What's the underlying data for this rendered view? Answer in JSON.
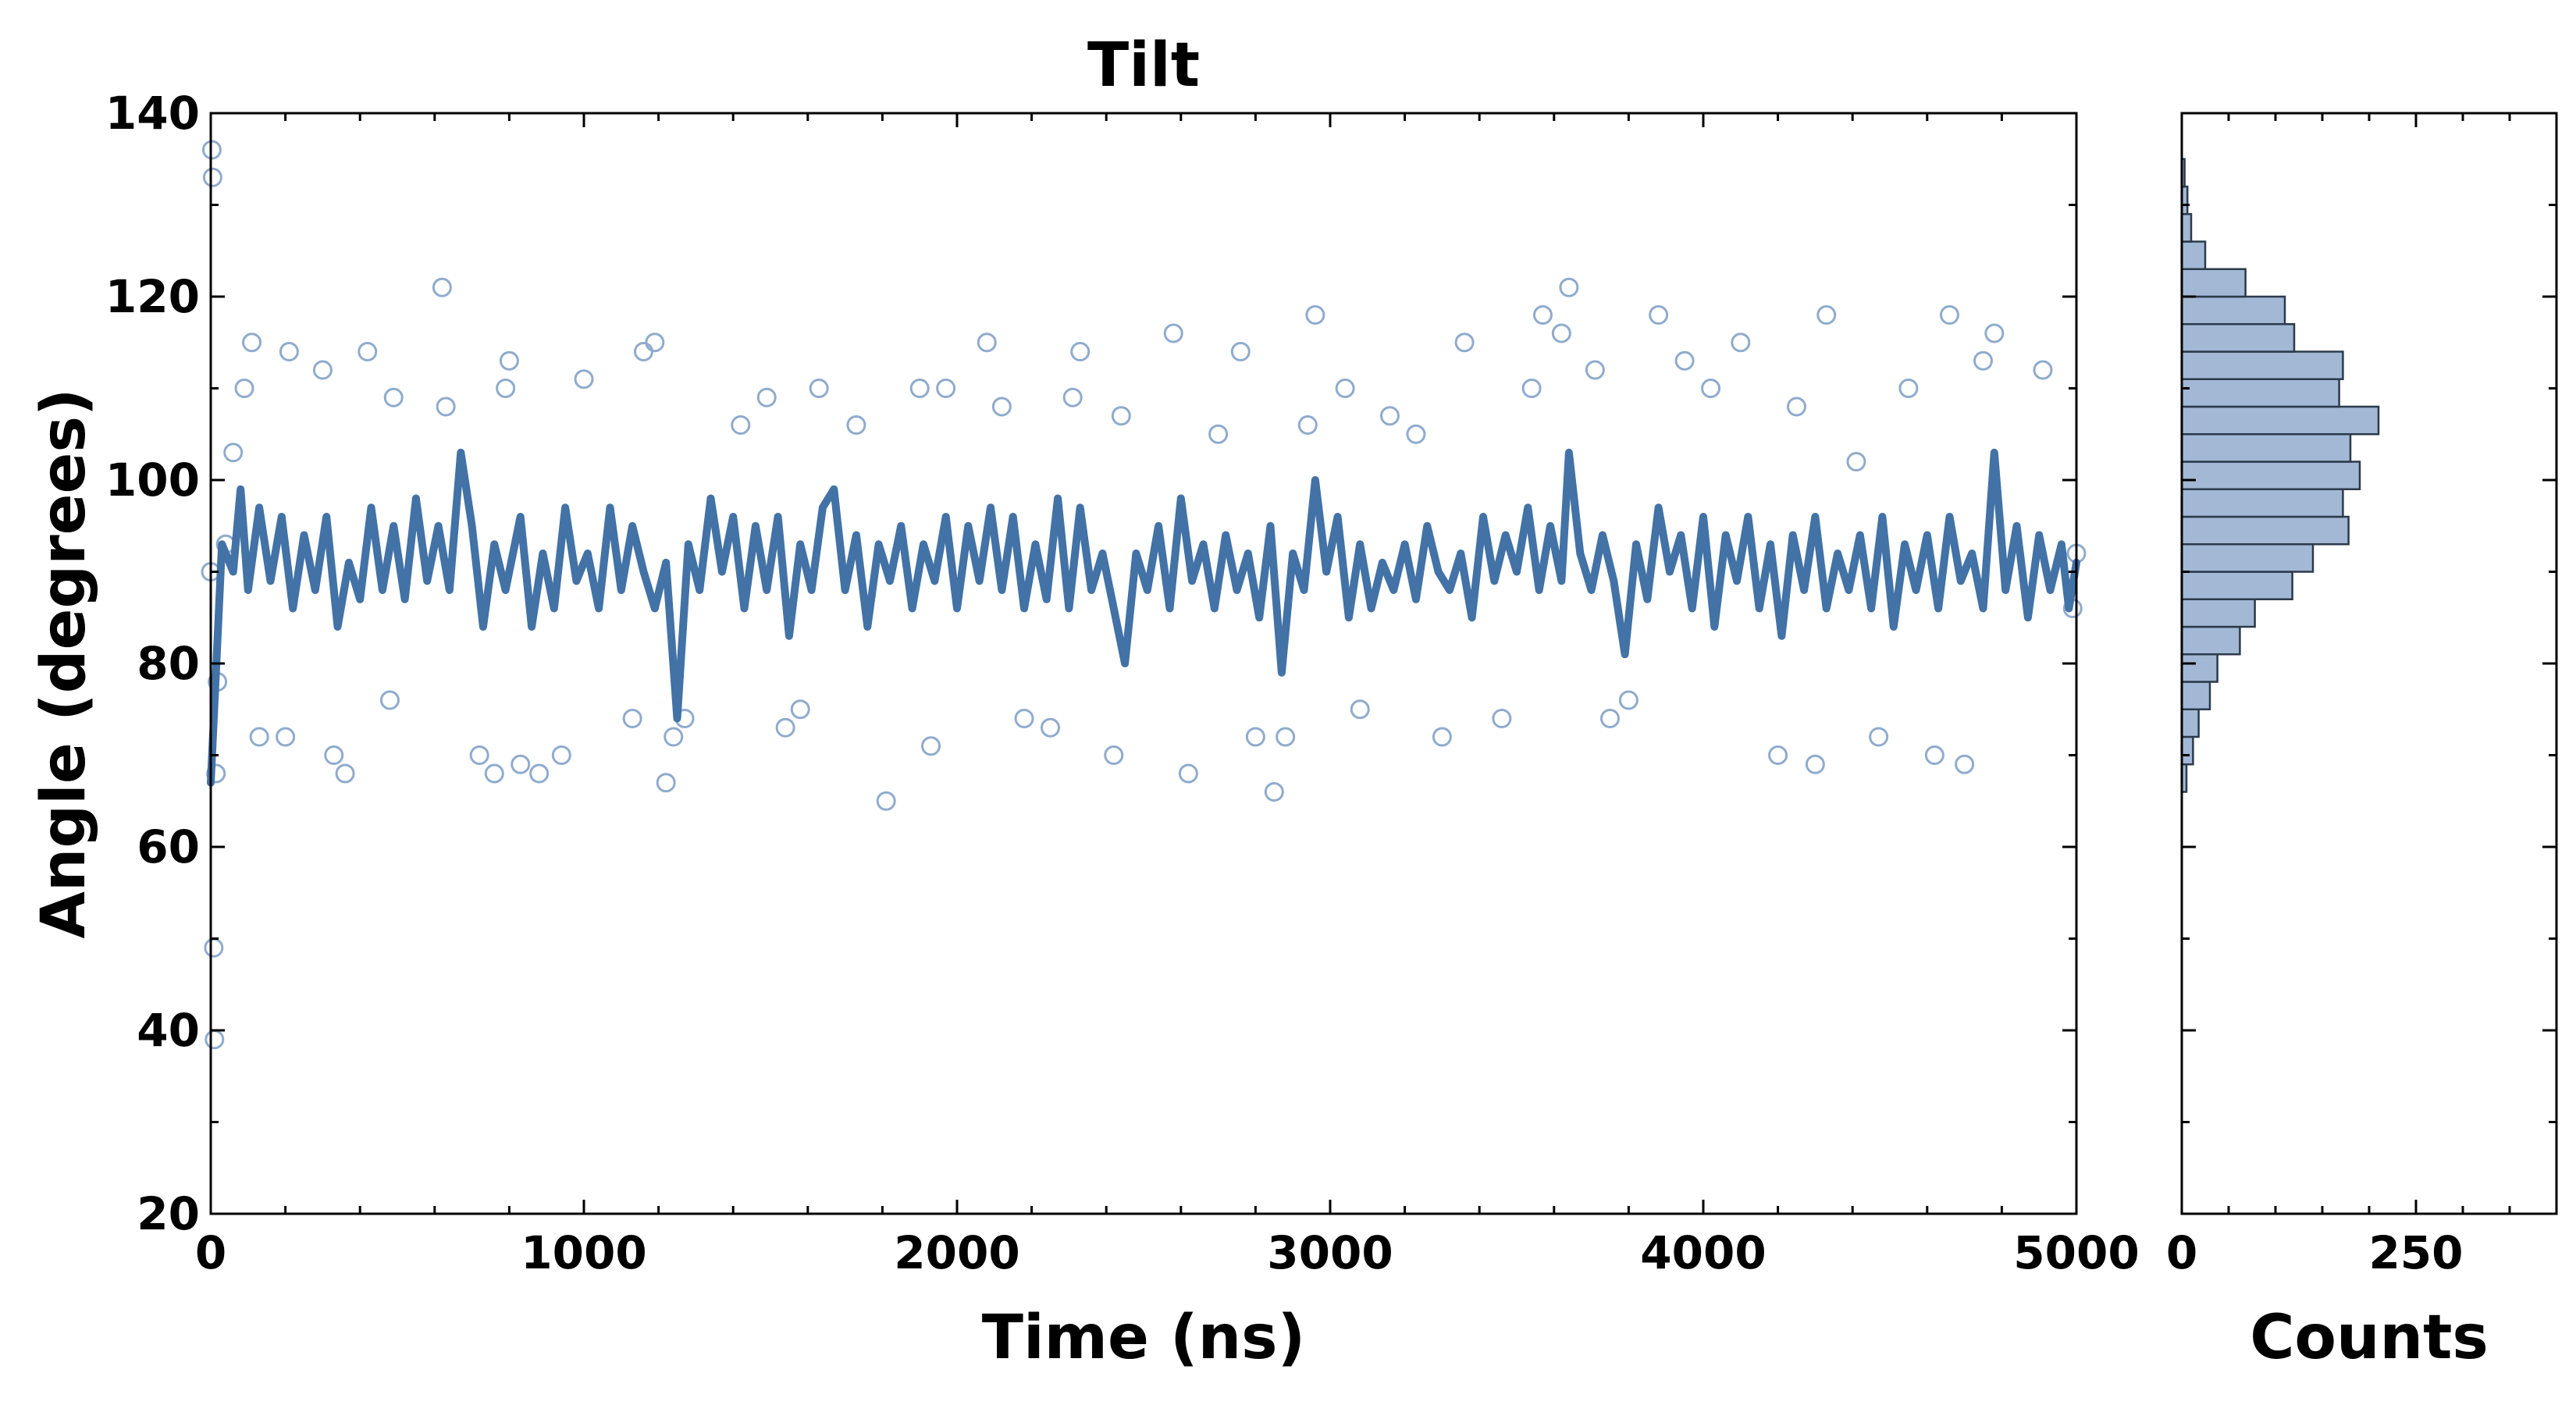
{
  "chart_data": [
    {
      "type": "scatter",
      "title": "Tilt",
      "xlabel": "Time (ns)",
      "ylabel": "Angle (degrees)",
      "xlim": [
        0,
        5000
      ],
      "ylim": [
        20,
        140
      ],
      "xticks": [
        "0",
        "1000",
        "2000",
        "3000",
        "4000",
        "5000"
      ],
      "yticks": [
        "20",
        "40",
        "60",
        "80",
        "100",
        "120",
        "140"
      ],
      "grid": false,
      "series": [
        {
          "kind": "scatter",
          "marker": "open-circle",
          "color": "#8fabcd",
          "points": [
            [
              0,
              90
            ],
            [
              3,
              136
            ],
            [
              5,
              133
            ],
            [
              8,
              49
            ],
            [
              10,
              39
            ],
            [
              14,
              68
            ],
            [
              18,
              78
            ],
            [
              40,
              93
            ],
            [
              60,
              103
            ],
            [
              90,
              110
            ],
            [
              110,
              115
            ],
            [
              130,
              72
            ],
            [
              200,
              72
            ],
            [
              210,
              114
            ],
            [
              300,
              112
            ],
            [
              330,
              70
            ],
            [
              360,
              68
            ],
            [
              420,
              114
            ],
            [
              480,
              76
            ],
            [
              490,
              109
            ],
            [
              620,
              121
            ],
            [
              630,
              108
            ],
            [
              720,
              70
            ],
            [
              760,
              68
            ],
            [
              790,
              110
            ],
            [
              800,
              113
            ],
            [
              830,
              69
            ],
            [
              880,
              68
            ],
            [
              940,
              70
            ],
            [
              1000,
              111
            ],
            [
              1130,
              74
            ],
            [
              1160,
              114
            ],
            [
              1190,
              115
            ],
            [
              1220,
              67
            ],
            [
              1240,
              72
            ],
            [
              1270,
              74
            ],
            [
              1420,
              106
            ],
            [
              1490,
              109
            ],
            [
              1540,
              73
            ],
            [
              1580,
              75
            ],
            [
              1630,
              110
            ],
            [
              1730,
              106
            ],
            [
              1810,
              65
            ],
            [
              1900,
              110
            ],
            [
              1930,
              71
            ],
            [
              1970,
              110
            ],
            [
              2080,
              115
            ],
            [
              2120,
              108
            ],
            [
              2180,
              74
            ],
            [
              2250,
              73
            ],
            [
              2310,
              109
            ],
            [
              2330,
              114
            ],
            [
              2420,
              70
            ],
            [
              2440,
              107
            ],
            [
              2580,
              116
            ],
            [
              2620,
              68
            ],
            [
              2700,
              105
            ],
            [
              2760,
              114
            ],
            [
              2800,
              72
            ],
            [
              2850,
              66
            ],
            [
              2880,
              72
            ],
            [
              2940,
              106
            ],
            [
              2960,
              118
            ],
            [
              3040,
              110
            ],
            [
              3080,
              75
            ],
            [
              3160,
              107
            ],
            [
              3230,
              105
            ],
            [
              3300,
              72
            ],
            [
              3360,
              115
            ],
            [
              3460,
              74
            ],
            [
              3540,
              110
            ],
            [
              3570,
              118
            ],
            [
              3620,
              116
            ],
            [
              3640,
              121
            ],
            [
              3710,
              112
            ],
            [
              3750,
              74
            ],
            [
              3800,
              76
            ],
            [
              3880,
              118
            ],
            [
              3950,
              113
            ],
            [
              4020,
              110
            ],
            [
              4100,
              115
            ],
            [
              4200,
              70
            ],
            [
              4250,
              108
            ],
            [
              4300,
              69
            ],
            [
              4330,
              118
            ],
            [
              4410,
              102
            ],
            [
              4470,
              72
            ],
            [
              4550,
              110
            ],
            [
              4620,
              70
            ],
            [
              4660,
              118
            ],
            [
              4700,
              69
            ],
            [
              4750,
              113
            ],
            [
              4780,
              116
            ],
            [
              4910,
              112
            ],
            [
              4990,
              86
            ],
            [
              5000,
              92
            ]
          ]
        },
        {
          "kind": "line",
          "color": "#4272a6",
          "points": [
            [
              0,
              67
            ],
            [
              15,
              80
            ],
            [
              30,
              93
            ],
            [
              60,
              90
            ],
            [
              80,
              99
            ],
            [
              100,
              88
            ],
            [
              130,
              97
            ],
            [
              160,
              89
            ],
            [
              190,
              96
            ],
            [
              220,
              86
            ],
            [
              250,
              94
            ],
            [
              280,
              88
            ],
            [
              310,
              96
            ],
            [
              340,
              84
            ],
            [
              370,
              91
            ],
            [
              400,
              87
            ],
            [
              430,
              97
            ],
            [
              460,
              88
            ],
            [
              490,
              95
            ],
            [
              520,
              87
            ],
            [
              550,
              98
            ],
            [
              580,
              89
            ],
            [
              610,
              95
            ],
            [
              640,
              88
            ],
            [
              670,
              103
            ],
            [
              700,
              95
            ],
            [
              730,
              84
            ],
            [
              760,
              93
            ],
            [
              790,
              88
            ],
            [
              830,
              96
            ],
            [
              860,
              84
            ],
            [
              890,
              92
            ],
            [
              920,
              86
            ],
            [
              950,
              97
            ],
            [
              980,
              89
            ],
            [
              1010,
              92
            ],
            [
              1040,
              86
            ],
            [
              1070,
              97
            ],
            [
              1100,
              88
            ],
            [
              1130,
              95
            ],
            [
              1160,
              90
            ],
            [
              1190,
              86
            ],
            [
              1220,
              91
            ],
            [
              1250,
              74
            ],
            [
              1280,
              93
            ],
            [
              1310,
              88
            ],
            [
              1340,
              98
            ],
            [
              1370,
              90
            ],
            [
              1400,
              96
            ],
            [
              1430,
              86
            ],
            [
              1460,
              95
            ],
            [
              1490,
              88
            ],
            [
              1520,
              96
            ],
            [
              1550,
              83
            ],
            [
              1580,
              93
            ],
            [
              1610,
              88
            ],
            [
              1640,
              97
            ],
            [
              1670,
              99
            ],
            [
              1700,
              88
            ],
            [
              1730,
              94
            ],
            [
              1760,
              84
            ],
            [
              1790,
              93
            ],
            [
              1820,
              89
            ],
            [
              1850,
              95
            ],
            [
              1880,
              86
            ],
            [
              1910,
              93
            ],
            [
              1940,
              89
            ],
            [
              1970,
              96
            ],
            [
              2000,
              86
            ],
            [
              2030,
              95
            ],
            [
              2060,
              89
            ],
            [
              2090,
              97
            ],
            [
              2120,
              88
            ],
            [
              2150,
              96
            ],
            [
              2180,
              86
            ],
            [
              2210,
              93
            ],
            [
              2240,
              87
            ],
            [
              2270,
              98
            ],
            [
              2300,
              86
            ],
            [
              2330,
              97
            ],
            [
              2360,
              88
            ],
            [
              2390,
              92
            ],
            [
              2420,
              86
            ],
            [
              2450,
              80
            ],
            [
              2480,
              92
            ],
            [
              2510,
              88
            ],
            [
              2540,
              95
            ],
            [
              2570,
              86
            ],
            [
              2600,
              98
            ],
            [
              2630,
              89
            ],
            [
              2660,
              93
            ],
            [
              2690,
              86
            ],
            [
              2720,
              94
            ],
            [
              2750,
              88
            ],
            [
              2780,
              92
            ],
            [
              2810,
              85
            ],
            [
              2840,
              95
            ],
            [
              2870,
              79
            ],
            [
              2900,
              92
            ],
            [
              2930,
              88
            ],
            [
              2960,
              100
            ],
            [
              2990,
              90
            ],
            [
              3020,
              96
            ],
            [
              3050,
              85
            ],
            [
              3080,
              93
            ],
            [
              3110,
              86
            ],
            [
              3140,
              91
            ],
            [
              3170,
              88
            ],
            [
              3200,
              93
            ],
            [
              3230,
              87
            ],
            [
              3260,
              95
            ],
            [
              3290,
              90
            ],
            [
              3320,
              88
            ],
            [
              3350,
              92
            ],
            [
              3380,
              85
            ],
            [
              3410,
              96
            ],
            [
              3440,
              89
            ],
            [
              3470,
              94
            ],
            [
              3500,
              90
            ],
            [
              3530,
              97
            ],
            [
              3560,
              88
            ],
            [
              3590,
              95
            ],
            [
              3620,
              89
            ],
            [
              3640,
              103
            ],
            [
              3670,
              92
            ],
            [
              3700,
              88
            ],
            [
              3730,
              94
            ],
            [
              3760,
              89
            ],
            [
              3790,
              81
            ],
            [
              3820,
              93
            ],
            [
              3850,
              87
            ],
            [
              3880,
              97
            ],
            [
              3910,
              90
            ],
            [
              3940,
              94
            ],
            [
              3970,
              86
            ],
            [
              4000,
              96
            ],
            [
              4030,
              84
            ],
            [
              4060,
              94
            ],
            [
              4090,
              89
            ],
            [
              4120,
              96
            ],
            [
              4150,
              86
            ],
            [
              4180,
              93
            ],
            [
              4210,
              83
            ],
            [
              4240,
              94
            ],
            [
              4270,
              88
            ],
            [
              4300,
              96
            ],
            [
              4330,
              86
            ],
            [
              4360,
              92
            ],
            [
              4390,
              88
            ],
            [
              4420,
              94
            ],
            [
              4450,
              86
            ],
            [
              4480,
              96
            ],
            [
              4510,
              84
            ],
            [
              4540,
              93
            ],
            [
              4570,
              88
            ],
            [
              4600,
              94
            ],
            [
              4630,
              86
            ],
            [
              4660,
              96
            ],
            [
              4690,
              89
            ],
            [
              4720,
              92
            ],
            [
              4750,
              86
            ],
            [
              4780,
              103
            ],
            [
              4810,
              88
            ],
            [
              4840,
              95
            ],
            [
              4870,
              85
            ],
            [
              4900,
              94
            ],
            [
              4930,
              88
            ],
            [
              4960,
              93
            ],
            [
              4980,
              86
            ],
            [
              5000,
              91
            ]
          ]
        }
      ]
    },
    {
      "type": "bar",
      "orientation": "horizontal",
      "xlabel": "Counts",
      "xlim": [
        0,
        400
      ],
      "xticks": [
        "0",
        "250"
      ],
      "ylim": [
        20,
        140
      ],
      "bar_color": "#a2b8d4",
      "edge_color": "#2b3a4a",
      "bins_start": 66,
      "bin_width": 3,
      "counts": [
        5,
        12,
        18,
        30,
        38,
        62,
        78,
        118,
        140,
        178,
        172,
        190,
        180,
        210,
        168,
        172,
        120,
        110,
        68,
        25,
        10,
        6,
        3
      ]
    }
  ]
}
